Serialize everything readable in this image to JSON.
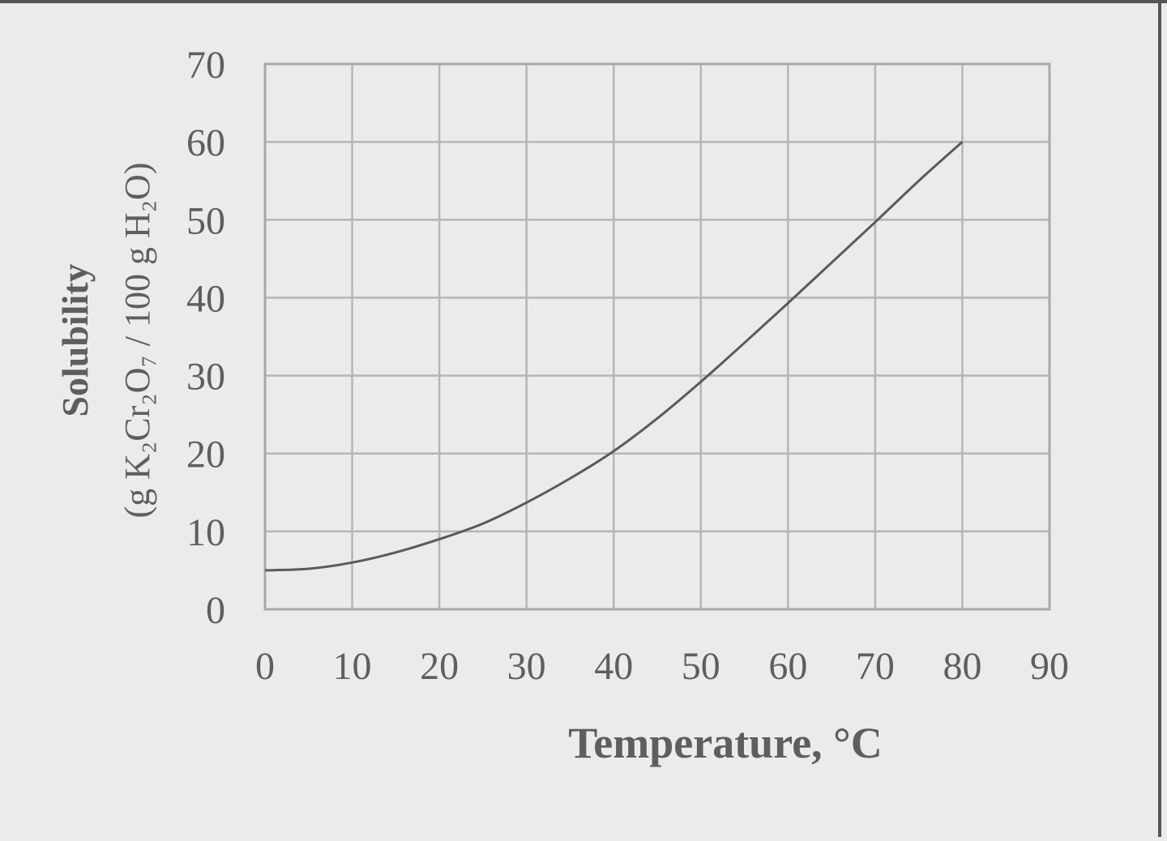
{
  "chart_data": {
    "type": "line",
    "title": "",
    "xlabel": "Temperature, °C",
    "ylabel_line1": "Solubility",
    "ylabel_line2": "(g K₂Cr₂O₇ / 100 g H₂O)",
    "xlim": [
      0,
      90
    ],
    "ylim": [
      0,
      70
    ],
    "x_ticks": [
      0,
      10,
      20,
      30,
      40,
      50,
      60,
      70,
      80,
      90
    ],
    "y_ticks": [
      0,
      10,
      20,
      30,
      40,
      50,
      60,
      70
    ],
    "grid": true,
    "series": [
      {
        "x": [
          0,
          5,
          10,
          15,
          20,
          25,
          30,
          35,
          40,
          45,
          50,
          55,
          60,
          65,
          70,
          75,
          80
        ],
        "y": [
          5,
          5.2,
          6,
          7.3,
          9,
          11,
          13.7,
          16.8,
          20.3,
          24.5,
          29.2,
          34.2,
          39.3,
          44.5,
          49.7,
          55,
          60
        ]
      }
    ]
  },
  "colors": {
    "background": "#ebebeb",
    "grid": "#b5b5b5",
    "frame": "#a8a8a8",
    "curve": "#5a5a5a",
    "text": "#5e5e5e",
    "border": "#555555"
  }
}
